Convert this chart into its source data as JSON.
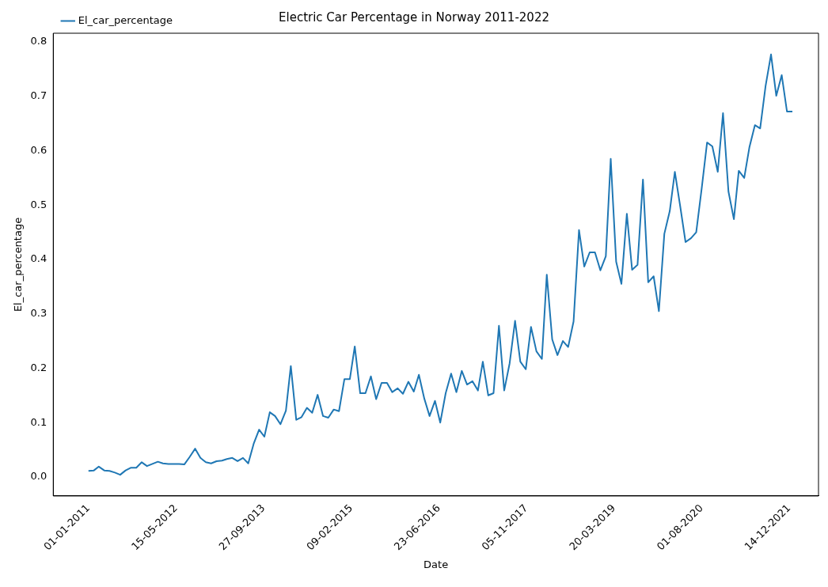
{
  "chart_data": {
    "type": "line",
    "title": "Electric Car Percentage in Norway 2011-2022",
    "xlabel": "Date",
    "ylabel": "El_car_percentage",
    "x": [
      "2011-01",
      "2011-02",
      "2011-03",
      "2011-04",
      "2011-05",
      "2011-06",
      "2011-07",
      "2011-08",
      "2011-09",
      "2011-10",
      "2011-11",
      "2011-12",
      "2012-01",
      "2012-02",
      "2012-03",
      "2012-04",
      "2012-05",
      "2012-06",
      "2012-07",
      "2012-08",
      "2012-09",
      "2012-10",
      "2012-11",
      "2012-12",
      "2013-01",
      "2013-02",
      "2013-03",
      "2013-04",
      "2013-05",
      "2013-06",
      "2013-07",
      "2013-08",
      "2013-09",
      "2013-10",
      "2013-11",
      "2013-12",
      "2014-01",
      "2014-02",
      "2014-03",
      "2014-04",
      "2014-05",
      "2014-06",
      "2014-07",
      "2014-08",
      "2014-09",
      "2014-10",
      "2014-11",
      "2014-12",
      "2015-01",
      "2015-02",
      "2015-03",
      "2015-04",
      "2015-05",
      "2015-06",
      "2015-07",
      "2015-08",
      "2015-09",
      "2015-10",
      "2015-11",
      "2015-12",
      "2016-01",
      "2016-02",
      "2016-03",
      "2016-04",
      "2016-05",
      "2016-06",
      "2016-07",
      "2016-08",
      "2016-09",
      "2016-10",
      "2016-11",
      "2016-12",
      "2017-01",
      "2017-02",
      "2017-03",
      "2017-04",
      "2017-05",
      "2017-06",
      "2017-07",
      "2017-08",
      "2017-09",
      "2017-10",
      "2017-11",
      "2017-12",
      "2018-01",
      "2018-02",
      "2018-03",
      "2018-04",
      "2018-05",
      "2018-06",
      "2018-07",
      "2018-08",
      "2018-09",
      "2018-10",
      "2018-11",
      "2018-12",
      "2019-01",
      "2019-02",
      "2019-03",
      "2019-04",
      "2019-05",
      "2019-06",
      "2019-07",
      "2019-08",
      "2019-09",
      "2019-10",
      "2019-11",
      "2019-12",
      "2020-01",
      "2020-02",
      "2020-03",
      "2020-04",
      "2020-05",
      "2020-06",
      "2020-07",
      "2020-08",
      "2020-09",
      "2020-10",
      "2020-11",
      "2020-12",
      "2021-01",
      "2021-02",
      "2021-03",
      "2021-04",
      "2021-05",
      "2021-06",
      "2021-07",
      "2021-08",
      "2021-09",
      "2021-10",
      "2021-11",
      "2021-12",
      "2022-01"
    ],
    "series": [
      {
        "name": "El_car_percentage",
        "color": "#1f77b4",
        "values": [
          0.011,
          0.012,
          0.019,
          0.012,
          0.011,
          0.008,
          0.004,
          0.012,
          0.017,
          0.017,
          0.027,
          0.02,
          0.024,
          0.028,
          0.025,
          0.024,
          0.024,
          0.024,
          0.023,
          0.037,
          0.052,
          0.035,
          0.027,
          0.025,
          0.029,
          0.03,
          0.033,
          0.035,
          0.029,
          0.035,
          0.025,
          0.061,
          0.087,
          0.074,
          0.119,
          0.112,
          0.097,
          0.122,
          0.204,
          0.105,
          0.11,
          0.127,
          0.118,
          0.151,
          0.112,
          0.109,
          0.124,
          0.121,
          0.18,
          0.18,
          0.24,
          0.154,
          0.154,
          0.185,
          0.143,
          0.173,
          0.173,
          0.156,
          0.163,
          0.153,
          0.175,
          0.157,
          0.188,
          0.144,
          0.112,
          0.14,
          0.1,
          0.154,
          0.19,
          0.156,
          0.195,
          0.17,
          0.176,
          0.159,
          0.212,
          0.15,
          0.154,
          0.278,
          0.159,
          0.209,
          0.287,
          0.212,
          0.198,
          0.276,
          0.231,
          0.217,
          0.372,
          0.253,
          0.224,
          0.25,
          0.239,
          0.286,
          0.454,
          0.387,
          0.413,
          0.413,
          0.38,
          0.406,
          0.585,
          0.396,
          0.355,
          0.484,
          0.381,
          0.39,
          0.547,
          0.358,
          0.369,
          0.305,
          0.447,
          0.489,
          0.561,
          0.497,
          0.432,
          0.439,
          0.45,
          0.53,
          0.615,
          0.608,
          0.561,
          0.669,
          0.525,
          0.474,
          0.563,
          0.55,
          0.607,
          0.647,
          0.641,
          0.719,
          0.777,
          0.701,
          0.739,
          0.672,
          0.672
        ]
      }
    ],
    "xlim": [
      "2010-06-14",
      "2022-05-30"
    ],
    "xticks": [
      {
        "value": "2011-01-01",
        "label": "01-01-2011"
      },
      {
        "value": "2012-05-15",
        "label": "15-05-2012"
      },
      {
        "value": "2013-09-27",
        "label": "27-09-2013"
      },
      {
        "value": "2015-02-09",
        "label": "09-02-2015"
      },
      {
        "value": "2016-06-23",
        "label": "23-06-2016"
      },
      {
        "value": "2017-11-05",
        "label": "05-11-2017"
      },
      {
        "value": "2019-03-20",
        "label": "20-03-2019"
      },
      {
        "value": "2020-08-01",
        "label": "01-08-2020"
      },
      {
        "value": "2021-12-14",
        "label": "14-12-2021"
      }
    ],
    "ylim": [
      -0.035,
      0.816
    ],
    "yticks": [
      {
        "value": 0,
        "label": "0.0"
      },
      {
        "value": 0.1,
        "label": "0.1"
      },
      {
        "value": 0.2,
        "label": "0.2"
      },
      {
        "value": 0.3,
        "label": "0.3"
      },
      {
        "value": 0.4,
        "label": "0.4"
      },
      {
        "value": 0.5,
        "label": "0.5"
      },
      {
        "value": 0.6,
        "label": "0.6"
      },
      {
        "value": 0.7,
        "label": "0.7"
      },
      {
        "value": 0.8,
        "label": "0.8"
      }
    ],
    "grid": false,
    "legend": "top left",
    "marker": "none",
    "line_style": "solid"
  }
}
